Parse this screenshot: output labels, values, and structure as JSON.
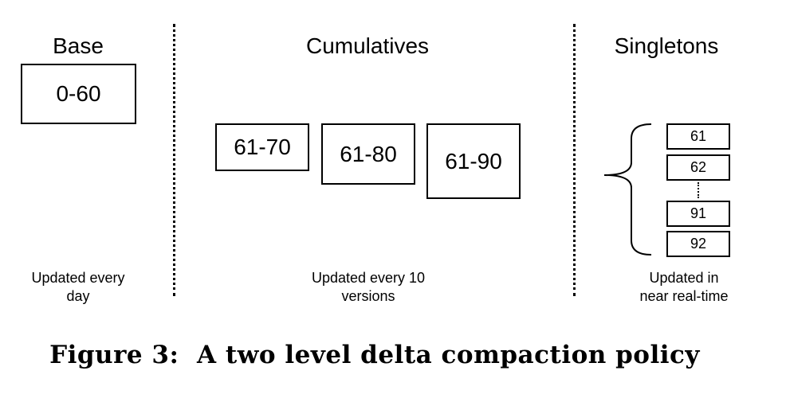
{
  "columns": {
    "base": {
      "heading": "Base",
      "box": "0-60",
      "caption_line1": "Updated every",
      "caption_line2": "day"
    },
    "cumulatives": {
      "heading": "Cumulatives",
      "boxes": [
        "61-70",
        "61-80",
        "61-90"
      ],
      "caption_line1": "Updated every 10",
      "caption_line2": "versions"
    },
    "singletons": {
      "heading": "Singletons",
      "boxes": [
        "61",
        "62",
        "91",
        "92"
      ],
      "caption_line1": "Updated in",
      "caption_line2": "near real-time"
    }
  },
  "figure_caption": "Figure 3:  A two level delta compaction policy"
}
